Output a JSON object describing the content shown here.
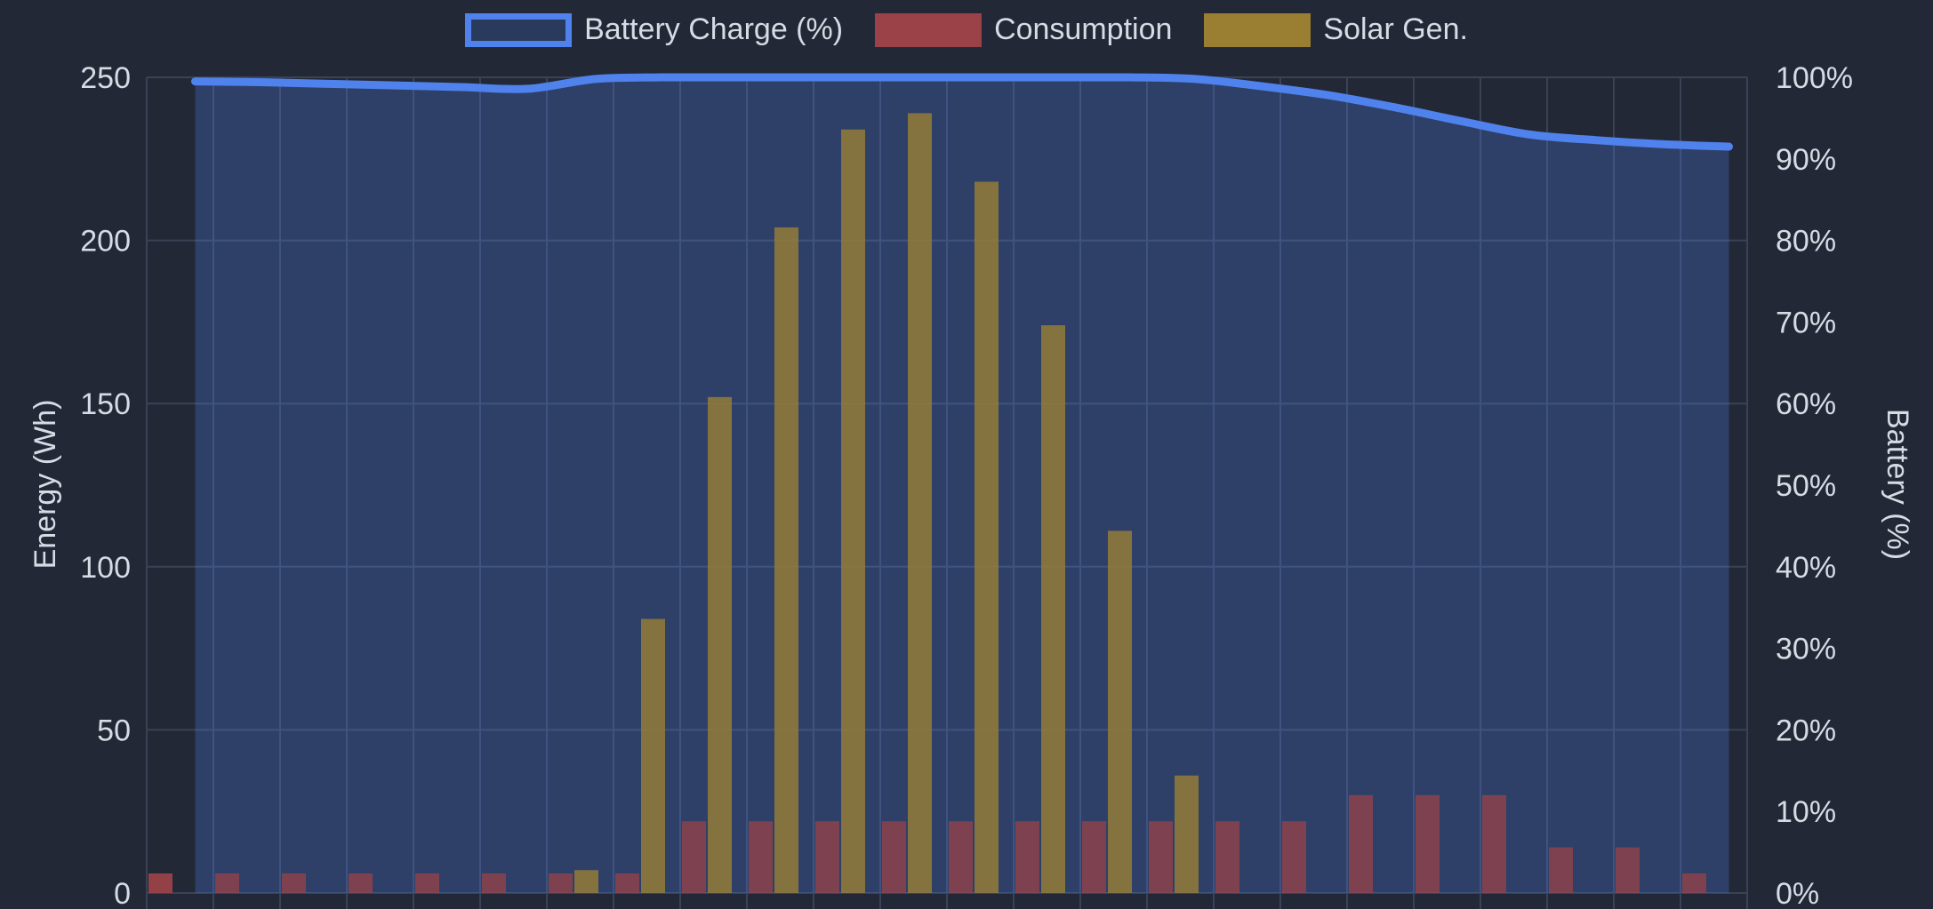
{
  "legend": {
    "battery": "Battery Charge (%)",
    "consumption": "Consumption",
    "solar": "Solar Gen."
  },
  "colors": {
    "background": "#222835",
    "battery_line": "#4f82ec",
    "battery_fill": "#2a3a5c",
    "consumption": "#9a4248",
    "solar": "#9a7f33",
    "grid": "#3a4256",
    "text": "#d6dbe4"
  },
  "chart_data": {
    "type": "bar",
    "grid": true,
    "legend_position": "top",
    "categories_count": 24,
    "y_left": {
      "label": "Energy (Wh)",
      "min": 0,
      "max": 250,
      "ticks": [
        "0",
        "50",
        "100",
        "150",
        "200",
        "250"
      ]
    },
    "y_right": {
      "label": "Battery (%)",
      "min": 0,
      "max": 100,
      "ticks": [
        "0%",
        "10%",
        "20%",
        "30%",
        "40%",
        "50%",
        "60%",
        "70%",
        "80%",
        "90%",
        "100%"
      ]
    },
    "series": [
      {
        "name": "Battery Charge (%)",
        "type": "line",
        "axis": "right",
        "values": [
          99.5,
          99.4,
          99.2,
          99.0,
          98.8,
          98.6,
          99.8,
          100,
          100,
          100,
          100,
          100,
          100,
          100,
          100,
          99.8,
          98.9,
          97.8,
          96.3,
          94.6,
          93.0,
          92.3,
          91.8,
          91.5
        ]
      },
      {
        "name": "Consumption",
        "type": "bar",
        "axis": "left",
        "values": [
          6,
          6,
          6,
          6,
          6,
          6,
          6,
          6,
          22,
          22,
          22,
          22,
          22,
          22,
          22,
          22,
          22,
          22,
          30,
          30,
          30,
          14,
          14,
          6
        ]
      },
      {
        "name": "Solar Gen.",
        "type": "bar",
        "axis": "left",
        "values": [
          0,
          0,
          0,
          0,
          0,
          0,
          7,
          84,
          152,
          204,
          234,
          239,
          218,
          174,
          111,
          36,
          0,
          0,
          0,
          0,
          0,
          0,
          0,
          0
        ]
      }
    ]
  }
}
